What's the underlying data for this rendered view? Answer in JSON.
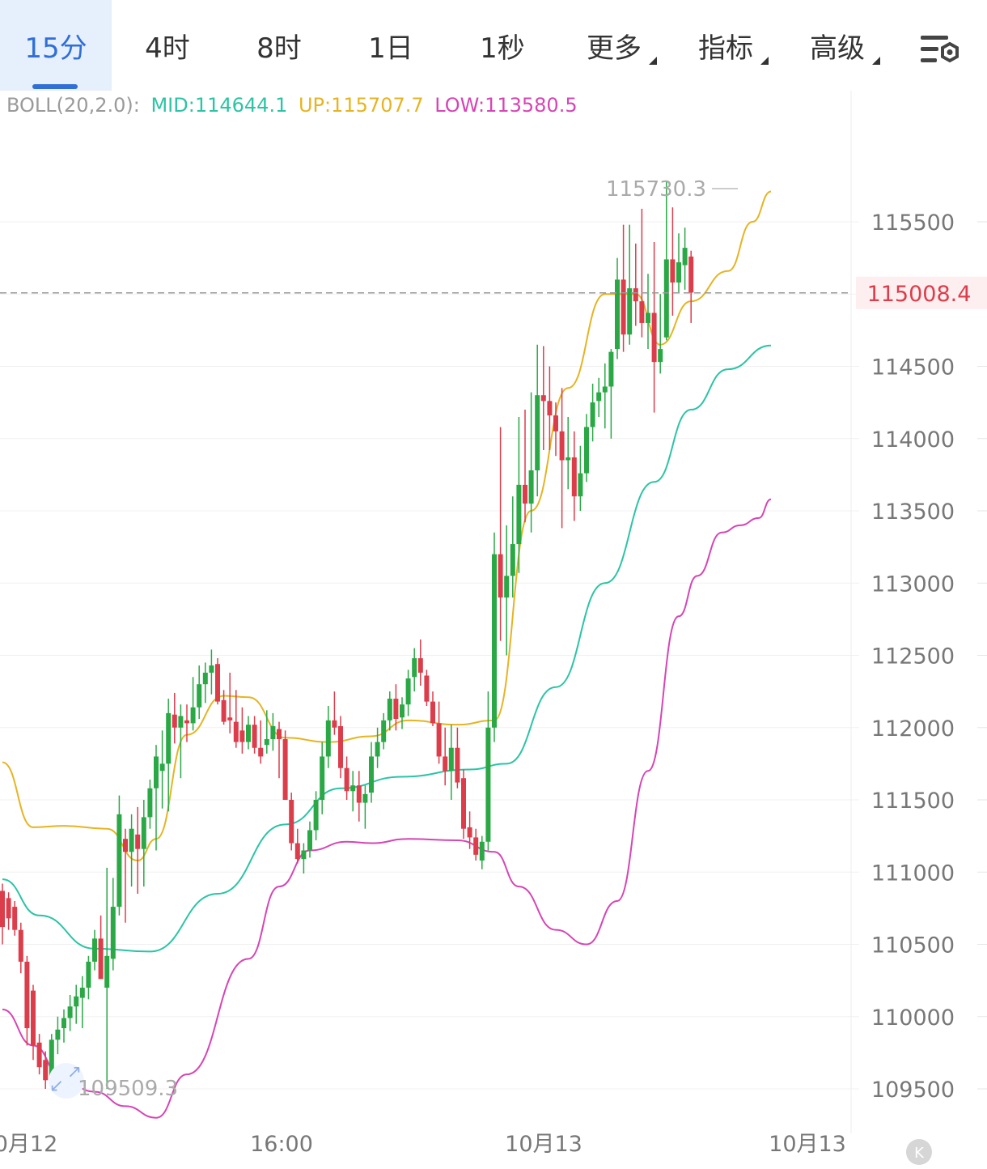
{
  "tabs": [
    {
      "label": "15分",
      "active": true
    },
    {
      "label": "4时"
    },
    {
      "label": "8时"
    },
    {
      "label": "1日"
    },
    {
      "label": "1秒"
    },
    {
      "label": "更多",
      "dropdown": true
    },
    {
      "label": "指标",
      "dropdown": true
    },
    {
      "label": "高级",
      "dropdown": true
    }
  ],
  "settings_icon": "chart-settings-icon",
  "indicator": {
    "name": "BOLL(20,2.0):",
    "mid": "MID:114644.1",
    "up": "UP:115707.7",
    "low": "LOW:113580.5"
  },
  "colors": {
    "up_candle": "#2aa845",
    "down_candle": "#dc3d4b",
    "mid": "#2bc4a4",
    "upper": "#e6b422",
    "lower": "#d645b4",
    "accent": "#2f6fd6",
    "price_line": "#999999",
    "price_label": "#dc3d4b"
  },
  "chart_data": {
    "type": "candlestick",
    "interval": "15分",
    "y_ticks": [
      115500,
      115000,
      114500,
      114000,
      113500,
      113000,
      112500,
      112000,
      111500,
      111000,
      110500,
      110000,
      109500
    ],
    "y_tick_labels": [
      "115500",
      "114500",
      "114000",
      "113500",
      "113000",
      "112500",
      "112000",
      "111500",
      "111000",
      "110500",
      "110000",
      "109500"
    ],
    "ylim": [
      109200,
      116100
    ],
    "x_labels": [
      "0月12",
      "16:00",
      "10月13",
      "10月13"
    ],
    "current_price": 115008.4,
    "current_price_label": "115008.4",
    "max_label": "115730.3",
    "min_label": "109509.3",
    "candles": [
      [
        110870,
        110920,
        110500,
        110620
      ],
      [
        110820,
        110860,
        110600,
        110680
      ],
      [
        110760,
        110800,
        110560,
        110600
      ],
      [
        110600,
        110650,
        110300,
        110380
      ],
      [
        110380,
        110420,
        109800,
        109920
      ],
      [
        110180,
        110220,
        109700,
        109800
      ],
      [
        109820,
        109880,
        109600,
        109650
      ],
      [
        109700,
        109760,
        109500,
        109560
      ],
      [
        109570,
        109880,
        109520,
        109840
      ],
      [
        109840,
        110000,
        109740,
        109910
      ],
      [
        109920,
        110050,
        109820,
        109990
      ],
      [
        109990,
        110150,
        109900,
        110070
      ],
      [
        110070,
        110220,
        109950,
        110140
      ],
      [
        110130,
        110280,
        109920,
        110200
      ],
      [
        110200,
        110420,
        110120,
        110380
      ],
      [
        110380,
        110600,
        110320,
        110540
      ],
      [
        110540,
        110700,
        110260,
        110260
      ],
      [
        110200,
        111030,
        109500,
        110420
      ],
      [
        110400,
        110960,
        110320,
        110760
      ],
      [
        110760,
        111530,
        110700,
        111400
      ],
      [
        111230,
        111300,
        110650,
        111140
      ],
      [
        111140,
        111400,
        110900,
        111300
      ],
      [
        111260,
        111450,
        110850,
        111160
      ],
      [
        111160,
        111500,
        110900,
        111380
      ],
      [
        111380,
        111640,
        111300,
        111580
      ],
      [
        111580,
        111880,
        111150,
        111800
      ],
      [
        111700,
        111980,
        111440,
        111750
      ],
      [
        111750,
        112200,
        111420,
        112100
      ],
      [
        112090,
        112240,
        111890,
        112000
      ],
      [
        112000,
        112160,
        111650,
        112080
      ],
      [
        112050,
        112160,
        111900,
        112030
      ],
      [
        112030,
        112350,
        111980,
        112140
      ],
      [
        112140,
        112430,
        112060,
        112300
      ],
      [
        112300,
        112450,
        112170,
        112380
      ],
      [
        112380,
        112540,
        112230,
        112430
      ],
      [
        112440,
        112480,
        112160,
        112180
      ],
      [
        112190,
        112260,
        112020,
        112040
      ],
      [
        112070,
        112380,
        111960,
        112050
      ],
      [
        112040,
        112260,
        111860,
        111900
      ],
      [
        111980,
        112140,
        111820,
        111900
      ],
      [
        111900,
        112080,
        111850,
        112020
      ],
      [
        112020,
        112080,
        111820,
        111860
      ],
      [
        111860,
        112050,
        111750,
        111800
      ],
      [
        111880,
        112120,
        111820,
        111920
      ],
      [
        111920,
        112100,
        111840,
        112010
      ],
      [
        111990,
        112040,
        111650,
        111920
      ],
      [
        111920,
        111980,
        111500,
        111500
      ],
      [
        111500,
        111550,
        111150,
        111200
      ],
      [
        111200,
        111300,
        111060,
        111090
      ],
      [
        111090,
        111200,
        110990,
        111150
      ],
      [
        111150,
        111350,
        111100,
        111290
      ],
      [
        111290,
        111560,
        111220,
        111500
      ],
      [
        111500,
        111900,
        111400,
        111800
      ],
      [
        111800,
        112150,
        111720,
        112050
      ],
      [
        112050,
        112250,
        111950,
        112000
      ],
      [
        112010,
        112080,
        111650,
        111720
      ],
      [
        111720,
        111800,
        111500,
        111560
      ],
      [
        111560,
        111700,
        111420,
        111600
      ],
      [
        111600,
        111700,
        111350,
        111480
      ],
      [
        111480,
        111600,
        111300,
        111540
      ],
      [
        111550,
        111900,
        111480,
        111800
      ],
      [
        111800,
        112000,
        111720,
        111900
      ],
      [
        111900,
        112100,
        111850,
        112050
      ],
      [
        112050,
        112250,
        111980,
        112200
      ],
      [
        112200,
        112300,
        111980,
        112060
      ],
      [
        112070,
        112210,
        111990,
        112160
      ],
      [
        112160,
        112400,
        112080,
        112340
      ],
      [
        112350,
        112550,
        112250,
        112480
      ],
      [
        112480,
        112610,
        112290,
        112380
      ],
      [
        112360,
        112400,
        112150,
        112180
      ],
      [
        112180,
        112250,
        112010,
        112030
      ],
      [
        112030,
        112180,
        111750,
        111800
      ],
      [
        111800,
        112000,
        111600,
        111700
      ],
      [
        111700,
        112020,
        111500,
        111860
      ],
      [
        111860,
        112000,
        111580,
        111620
      ],
      [
        111650,
        111710,
        111230,
        111300
      ],
      [
        111310,
        111420,
        111160,
        111240
      ],
      [
        111240,
        111300,
        111080,
        111120
      ],
      [
        111080,
        111250,
        111020,
        111210
      ],
      [
        111210,
        112250,
        111150,
        112000
      ],
      [
        112000,
        113350,
        111900,
        113200
      ],
      [
        113200,
        114080,
        112600,
        112900
      ],
      [
        112900,
        113400,
        112500,
        113050
      ],
      [
        113050,
        113600,
        112900,
        113270
      ],
      [
        113270,
        114150,
        113070,
        113680
      ],
      [
        113680,
        114200,
        113420,
        113550
      ],
      [
        113550,
        114320,
        113350,
        113780
      ],
      [
        113780,
        114650,
        113600,
        114300
      ],
      [
        114300,
        114640,
        113920,
        114260
      ],
      [
        114260,
        114500,
        113920,
        114160
      ],
      [
        114160,
        114250,
        113880,
        114050
      ],
      [
        114050,
        114350,
        113380,
        113850
      ],
      [
        113850,
        114150,
        113650,
        113870
      ],
      [
        113870,
        114050,
        113430,
        113600
      ],
      [
        113600,
        113950,
        113500,
        113760
      ],
      [
        113760,
        114170,
        113700,
        114080
      ],
      [
        114080,
        114380,
        113980,
        114250
      ],
      [
        114260,
        114420,
        114150,
        114320
      ],
      [
        114320,
        114520,
        114070,
        114360
      ],
      [
        114360,
        114620,
        114000,
        114600
      ],
      [
        114620,
        115250,
        114550,
        115100
      ],
      [
        115100,
        115480,
        114600,
        114720
      ],
      [
        114720,
        115480,
        114650,
        115040
      ],
      [
        115040,
        115350,
        114780,
        114950
      ],
      [
        114950,
        115590,
        114700,
        114800
      ],
      [
        114800,
        115140,
        114620,
        114870
      ],
      [
        114870,
        115360,
        114180,
        114530
      ],
      [
        114530,
        115000,
        114450,
        114620
      ],
      [
        114700,
        115780,
        114680,
        115240
      ],
      [
        115240,
        115600,
        114850,
        115080
      ],
      [
        115080,
        115420,
        115010,
        115220
      ],
      [
        115200,
        115460,
        115030,
        115320
      ],
      [
        115260,
        115300,
        114800,
        115010
      ]
    ],
    "series": [
      {
        "name": "MID",
        "values": [
          [
            0,
            110950
          ],
          [
            6,
            110700
          ],
          [
            15,
            110470
          ],
          [
            24,
            110450
          ],
          [
            35,
            110850
          ],
          [
            46,
            111330
          ],
          [
            55,
            111580
          ],
          [
            65,
            111660
          ],
          [
            76,
            111710
          ],
          [
            82,
            111750
          ],
          [
            90,
            112280
          ],
          [
            98,
            113000
          ],
          [
            106,
            113700
          ],
          [
            112,
            114200
          ],
          [
            118,
            114480
          ],
          [
            125,
            114644
          ]
        ]
      },
      {
        "name": "UP",
        "values": [
          [
            0,
            111760
          ],
          [
            5,
            111310
          ],
          [
            10,
            111320
          ],
          [
            17,
            111300
          ],
          [
            22,
            111080
          ],
          [
            25,
            111230
          ],
          [
            30,
            111950
          ],
          [
            36,
            112220
          ],
          [
            40,
            112210
          ],
          [
            46,
            111930
          ],
          [
            53,
            111900
          ],
          [
            60,
            111940
          ],
          [
            66,
            112050
          ],
          [
            74,
            112020
          ],
          [
            80,
            112050
          ],
          [
            86,
            113500
          ],
          [
            92,
            114350
          ],
          [
            98,
            115000
          ],
          [
            103,
            115000
          ],
          [
            107,
            114650
          ],
          [
            112,
            114950
          ],
          [
            118,
            115160
          ],
          [
            122,
            115500
          ],
          [
            125,
            115710
          ]
        ]
      },
      {
        "name": "LOW",
        "values": [
          [
            0,
            110050
          ],
          [
            5,
            109800
          ],
          [
            10,
            109550
          ],
          [
            15,
            109480
          ],
          [
            20,
            109380
          ],
          [
            25,
            109300
          ],
          [
            30,
            109600
          ],
          [
            40,
            110400
          ],
          [
            45,
            110900
          ],
          [
            50,
            111150
          ],
          [
            56,
            111210
          ],
          [
            60,
            111200
          ],
          [
            66,
            111230
          ],
          [
            74,
            111220
          ],
          [
            80,
            111140
          ],
          [
            84,
            110900
          ],
          [
            90,
            110600
          ],
          [
            95,
            110500
          ],
          [
            100,
            110800
          ],
          [
            105,
            111700
          ],
          [
            110,
            112770
          ],
          [
            113,
            113050
          ],
          [
            117,
            113350
          ],
          [
            120,
            113400
          ],
          [
            123,
            113450
          ],
          [
            125,
            113580
          ]
        ]
      }
    ],
    "legend": "top-left",
    "grid": true
  }
}
